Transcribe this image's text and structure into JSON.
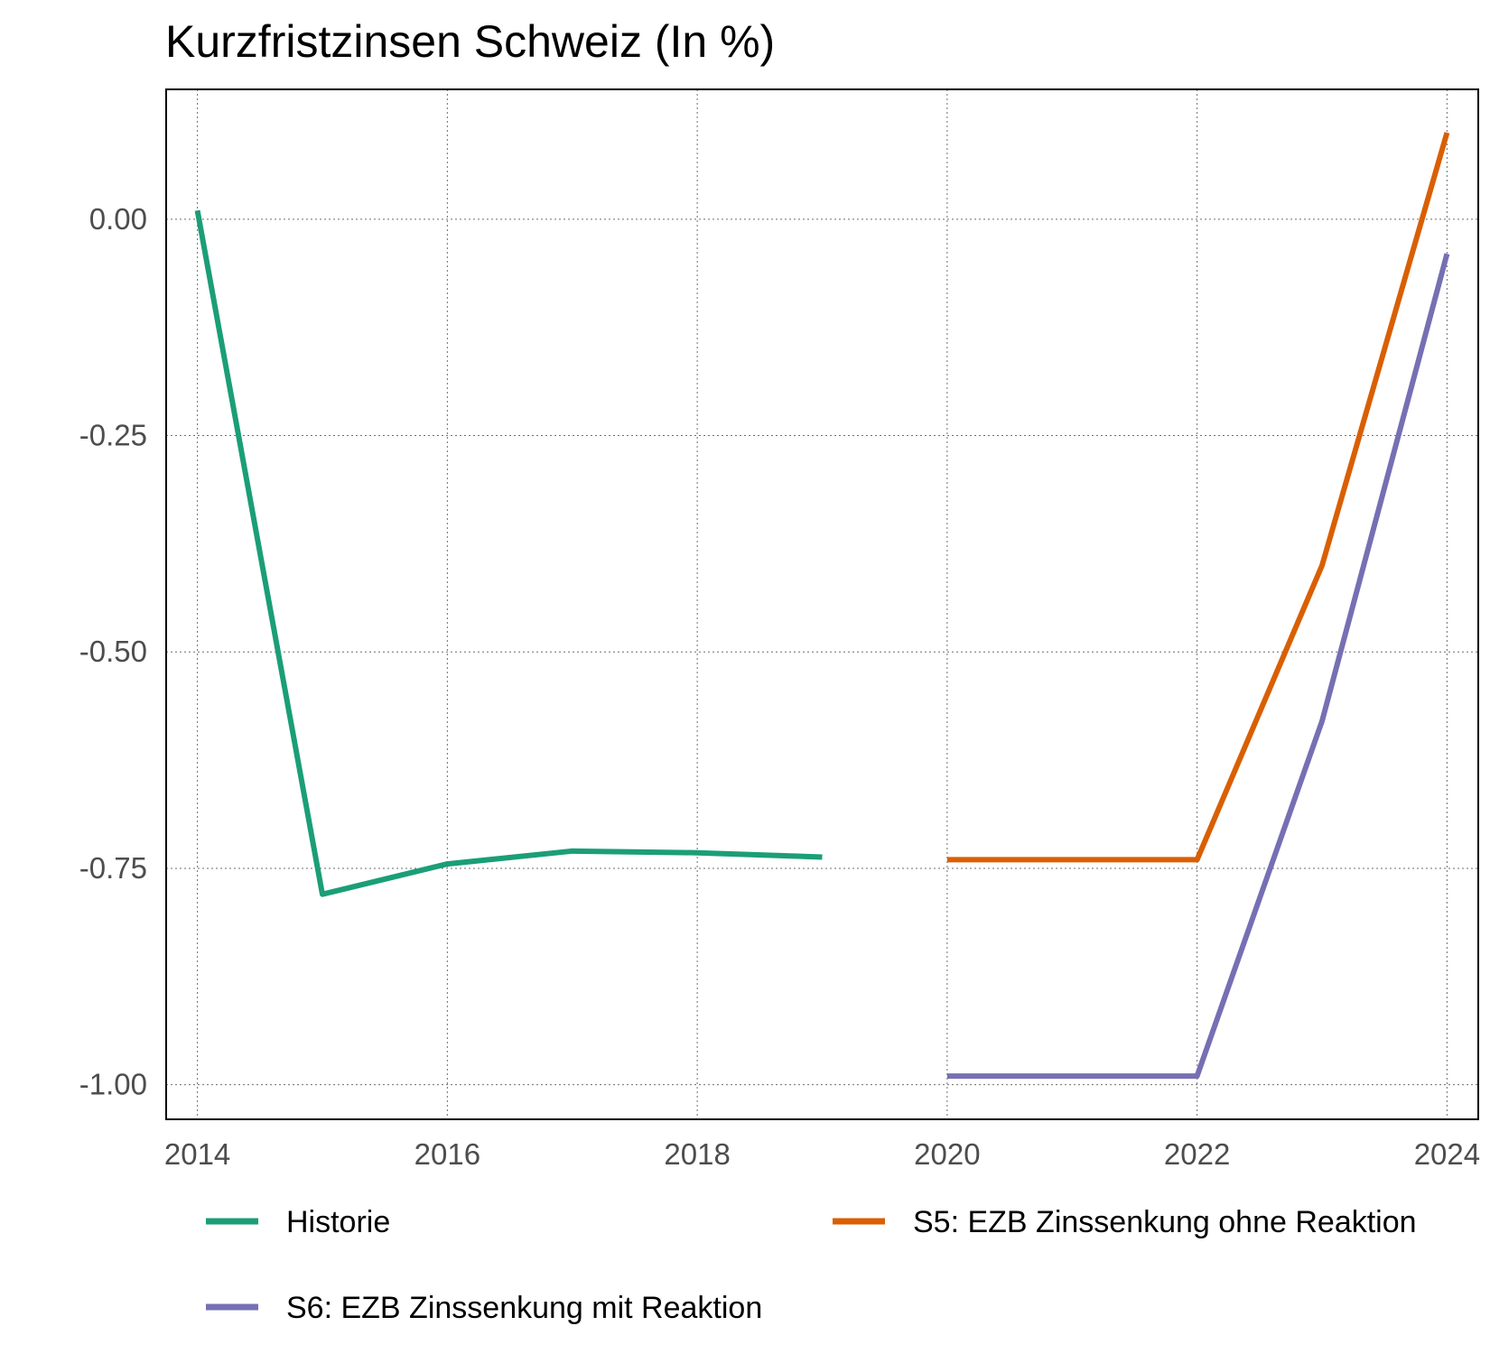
{
  "chart_data": {
    "type": "line",
    "title": "Kurzfristzinsen Schweiz (In %)",
    "xlabel": "",
    "ylabel": "",
    "xlim": [
      2013.75,
      2024.25
    ],
    "ylim": [
      -1.04,
      0.15
    ],
    "x_ticks": [
      2014,
      2016,
      2018,
      2020,
      2022,
      2024
    ],
    "x_tick_labels": [
      "2014",
      "2016",
      "2018",
      "2020",
      "2022",
      "2024"
    ],
    "y_ticks": [
      0.0,
      -0.25,
      -0.5,
      -0.75,
      -1.0
    ],
    "y_tick_labels": [
      "0.00",
      "-0.25",
      "-0.50",
      "-0.75",
      "-1.00"
    ],
    "grid": true,
    "legend_position": "bottom",
    "series": [
      {
        "name": "Historie",
        "color": "#1b9e77",
        "x": [
          2014,
          2015,
          2016,
          2017,
          2018,
          2019
        ],
        "y": [
          0.01,
          -0.78,
          -0.745,
          -0.73,
          -0.732,
          -0.737
        ]
      },
      {
        "name": "S5: EZB Zinssenkung ohne Reaktion",
        "color": "#d95f02",
        "x": [
          2020,
          2021,
          2022,
          2023,
          2024
        ],
        "y": [
          -0.74,
          -0.74,
          -0.74,
          -0.4,
          0.1
        ]
      },
      {
        "name": "S6: EZB Zinssenkung mit Reaktion",
        "color": "#7570b3",
        "x": [
          2020,
          2021,
          2022,
          2023,
          2024
        ],
        "y": [
          -0.99,
          -0.99,
          -0.99,
          -0.58,
          -0.04
        ]
      }
    ]
  }
}
